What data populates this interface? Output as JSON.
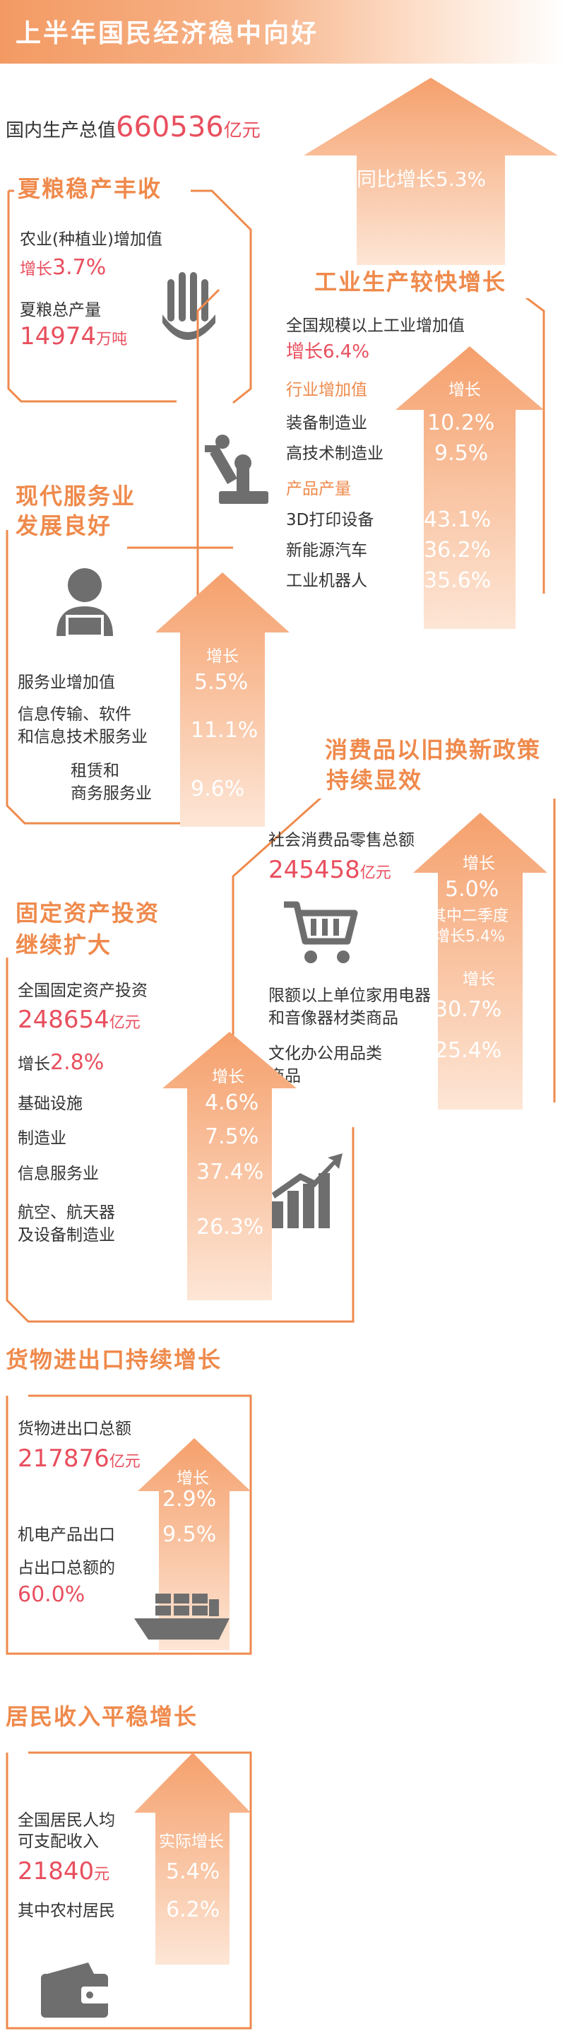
{
  "header": {
    "title": "上半年国民经济稳中向好"
  },
  "gdp": {
    "label": "国内生产总值",
    "value": "660536",
    "unit": "亿元",
    "growth": "同比增长5.3%"
  },
  "grain": {
    "title": "夏粮稳产丰收",
    "agri_label": "农业(种植业)增加值",
    "agri_growth_label": "增长",
    "agri_growth_value": "3.7%",
    "output_label": "夏粮总产量",
    "output_value": "14974",
    "output_unit": "万吨"
  },
  "industry": {
    "title": "工业生产较快增长",
    "total_label": "全国规模以上工业增加值",
    "total_growth": "增长6.4%",
    "sector_header": "行业增加值",
    "growth_header": "增长",
    "product_header": "产品产量",
    "rows": [
      {
        "label": "装备制造业",
        "value": "10.2%"
      },
      {
        "label": "高技术制造业",
        "value": "9.5%"
      }
    ],
    "products": [
      {
        "label": "3D打印设备",
        "value": "43.1%"
      },
      {
        "label": "新能源汽车",
        "value": "36.2%"
      },
      {
        "label": "工业机器人",
        "value": "35.6%"
      }
    ]
  },
  "services": {
    "title_line1": "现代服务业",
    "title_line2": "发展良好",
    "growth_header": "增长",
    "rows": [
      {
        "label": "服务业增加值",
        "value": "5.5%"
      },
      {
        "label": "信息传输、软件\n和信息技术服务业",
        "value": "11.1%"
      },
      {
        "label": "租赁和\n商务服务业",
        "value": "9.6%"
      }
    ]
  },
  "consumer": {
    "title_line1": "消费品以旧换新政策",
    "title_line2": "持续显效",
    "retail_label": "社会消费品零售总额",
    "retail_value": "245458",
    "retail_unit": "亿元",
    "growth_header": "增长",
    "growth_value": "5.0%",
    "q2_label": "其中二季度\n增长5.4%",
    "growth_header2": "增长",
    "appliance_label": "限额以上单位家用电器\n和音像器材类商品",
    "appliance_value": "30.7%",
    "office_label": "文化办公用品类\n商品",
    "office_value": "25.4%"
  },
  "investment": {
    "title_line1": "固定资产投资",
    "title_line2": "继续扩大",
    "total_label": "全国固定资产投资",
    "total_value": "248654",
    "total_unit": "亿元",
    "growth_label": "增长",
    "growth_value": "2.8%",
    "growth_header": "增长",
    "rows": [
      {
        "label": "基础设施",
        "value": "4.6%"
      },
      {
        "label": "制造业",
        "value": "7.5%"
      },
      {
        "label": "信息服务业",
        "value": "37.4%"
      },
      {
        "label": "航空、航天器\n及设备制造业",
        "value": "26.3%"
      }
    ]
  },
  "trade": {
    "title": "货物进出口持续增长",
    "total_label": "货物进出口总额",
    "total_value": "217876",
    "total_unit": "亿元",
    "growth_header": "增长",
    "growth_value": "2.9%",
    "mech_label": "机电产品出口",
    "mech_value": "9.5%",
    "share_label": "占出口总额的",
    "share_value": "60.0%"
  },
  "income": {
    "title": "居民收入平稳增长",
    "label": "全国居民人均\n可支配收入",
    "value": "21840",
    "unit": "元",
    "growth_header": "实际增长",
    "growth_value": "5.4%",
    "rural_label": "其中农村居民",
    "rural_value": "6.2%"
  },
  "colors": {
    "accent": "#ef8a4c",
    "highlight": "#e84f5e",
    "icon": "#6e6e6e"
  }
}
